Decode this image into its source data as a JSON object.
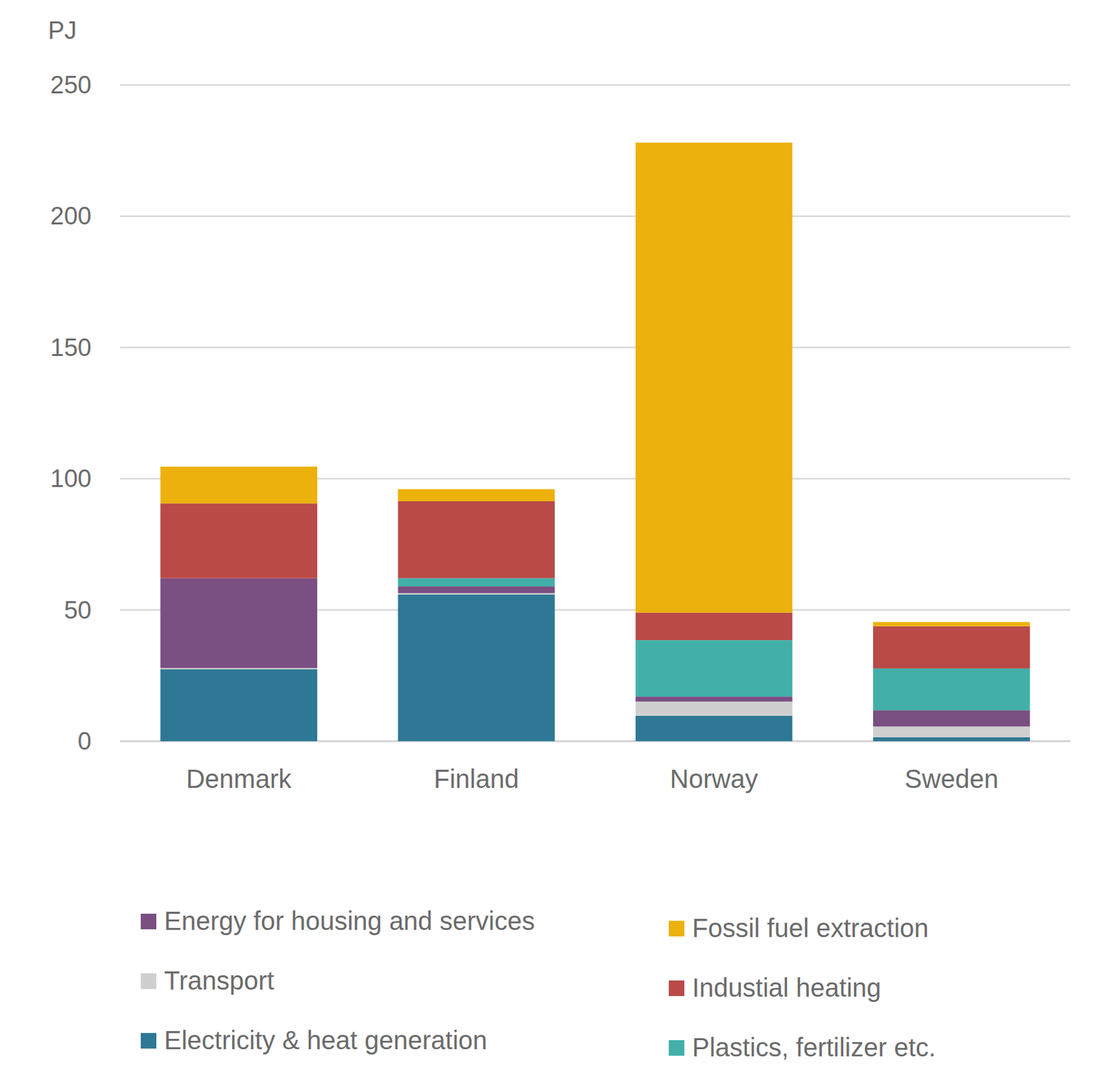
{
  "chart_data": {
    "type": "bar",
    "stacked": true,
    "y_label": "PJ",
    "categories": [
      "Denmark",
      "Finland",
      "Norway",
      "Sweden"
    ],
    "series": [
      {
        "name": "Electricity & heat generation",
        "color": "#2e7895",
        "values": [
          27.4,
          55.9,
          9.7,
          1.5
        ]
      },
      {
        "name": "Transport",
        "color": "#cfcfcf",
        "values": [
          0.5,
          0.5,
          5.4,
          4.1
        ]
      },
      {
        "name": "Energy for housing and services",
        "color": "#7a4f82",
        "values": [
          34.2,
          2.6,
          1.9,
          6.2
        ]
      },
      {
        "name": "Plastics, fertilizer etc.",
        "color": "#42b0a8",
        "values": [
          0,
          3.1,
          21.5,
          15.9
        ]
      },
      {
        "name": "Industial heating",
        "color": "#b94a47",
        "values": [
          28.5,
          29.3,
          10.5,
          16.1
        ]
      },
      {
        "name": "Fossil fuel extraction",
        "color": "#ecb10c",
        "values": [
          14,
          4.6,
          179,
          1.6
        ]
      }
    ],
    "ylim": [
      0,
      250
    ],
    "yticks": [
      0,
      50,
      100,
      150,
      200,
      250
    ],
    "grid": true,
    "legend": "bottom"
  }
}
